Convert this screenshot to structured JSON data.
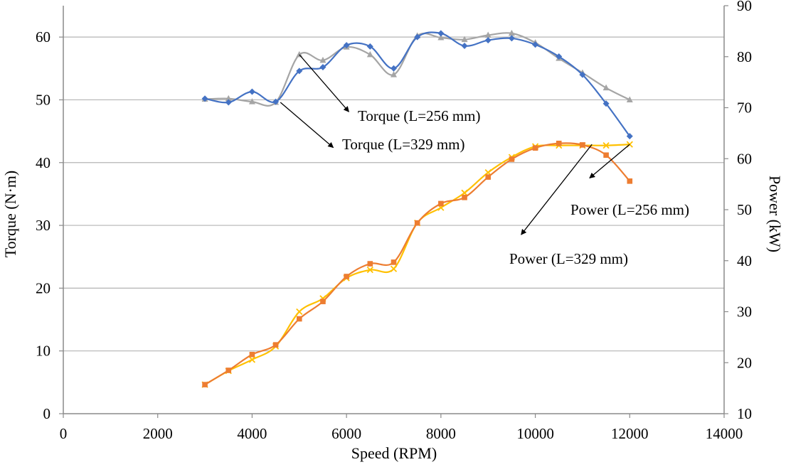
{
  "chart_data": {
    "type": "line",
    "title": "",
    "xlabel": "Speed (RPM)",
    "ylabel": "Torque (N·m)",
    "ylabel_right": "Power (kW)",
    "xlim": [
      0,
      14000
    ],
    "ylim": [
      0,
      65
    ],
    "ylim_right": [
      10,
      90
    ],
    "x_ticks": [
      0,
      2000,
      4000,
      6000,
      8000,
      10000,
      12000,
      14000
    ],
    "y_ticks": [
      0,
      10,
      20,
      30,
      40,
      50,
      60
    ],
    "y_ticks_right": [
      10,
      20,
      30,
      40,
      50,
      60,
      70,
      80,
      90
    ],
    "grid": "horizontal at left-axis ticks 10 to 60",
    "series": [
      {
        "name": "Torque (L=256 mm)",
        "axis": "left",
        "color": "#a5a5a5",
        "marker": "triangle",
        "x": [
          3000,
          3500,
          4000,
          4500,
          5000,
          5500,
          6000,
          6500,
          7000,
          7500,
          8000,
          8500,
          9000,
          9500,
          10000,
          10500,
          11000,
          11500,
          12000
        ],
        "values": [
          50.1,
          50.2,
          49.7,
          49.6,
          57.2,
          56.3,
          58.4,
          57.2,
          54.0,
          60.2,
          59.9,
          59.6,
          60.3,
          60.6,
          59.1,
          56.6,
          54.3,
          51.9,
          50.0
        ]
      },
      {
        "name": "Torque (L=329 mm)",
        "axis": "left",
        "color": "#4472c4",
        "marker": "diamond",
        "x": [
          3000,
          3500,
          4000,
          4500,
          5000,
          5500,
          6000,
          6500,
          7000,
          7500,
          8000,
          8500,
          9000,
          9500,
          10000,
          10500,
          11000,
          11500,
          12000
        ],
        "values": [
          50.2,
          49.6,
          51.3,
          49.7,
          54.6,
          55.2,
          58.7,
          58.5,
          55.0,
          60.0,
          60.6,
          58.6,
          59.5,
          59.8,
          58.8,
          56.9,
          54.0,
          49.4,
          44.2
        ]
      },
      {
        "name": "Power (L=256 mm)",
        "axis": "right",
        "color": "#ffc000",
        "marker": "cross",
        "x": [
          3000,
          3500,
          4000,
          4500,
          5000,
          5500,
          6000,
          6500,
          7000,
          7500,
          8000,
          8500,
          9000,
          9500,
          10000,
          10500,
          11000,
          11500,
          12000
        ],
        "values": [
          15.7,
          18.4,
          20.6,
          23.2,
          30.0,
          32.6,
          36.6,
          38.2,
          38.4,
          47.4,
          50.4,
          53.3,
          57.3,
          60.3,
          62.4,
          62.6,
          62.6,
          62.6,
          62.8
        ]
      },
      {
        "name": "Power (L=329 mm)",
        "axis": "right",
        "color": "#ed7d31",
        "marker": "square",
        "x": [
          3000,
          3500,
          4000,
          4500,
          5000,
          5500,
          6000,
          6500,
          7000,
          7500,
          8000,
          8500,
          9000,
          9500,
          10000,
          10500,
          11000,
          11500,
          12000
        ],
        "values": [
          15.7,
          18.5,
          21.6,
          23.5,
          28.6,
          32.0,
          36.9,
          39.4,
          39.7,
          47.4,
          51.2,
          52.4,
          56.4,
          59.9,
          62.1,
          63.0,
          62.7,
          60.7,
          55.6
        ]
      }
    ],
    "annotations": [
      {
        "label": "Torque (L=256 mm)",
        "target_series": "Torque (L=256 mm)",
        "target_x": 5000,
        "target_y": 57.2,
        "arrow_end_x": 6050,
        "arrow_end_y": 48.1
      },
      {
        "label": "Torque (L=329 mm)",
        "target_series": "Torque (L=329 mm)",
        "target_x": 4600,
        "target_y": 49.6,
        "arrow_end_x": 5720,
        "arrow_end_y": 42.4
      },
      {
        "label": "Power (L=256 mm)",
        "target_series": "Power (L=256 mm)",
        "target_x": 12000,
        "target_y": 62.8,
        "arrow_end_x": 11150,
        "arrow_end_y": 56.2
      },
      {
        "label": "Power (L=329 mm)",
        "target_series": "Power (L=329 mm)",
        "target_x": 11200,
        "target_y": 62.8,
        "arrow_end_x": 9700,
        "arrow_end_y": 45.1
      }
    ]
  }
}
